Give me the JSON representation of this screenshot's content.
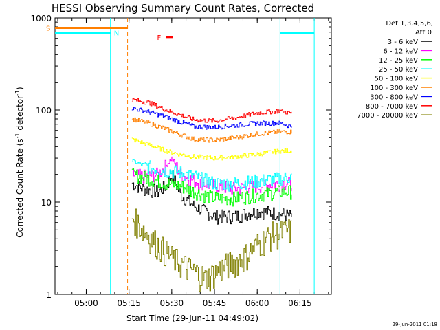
{
  "chart_data": {
    "type": "line",
    "title": "HESSI Observing Summary Count Rates, Corrected",
    "xlabel": "Start Time (29-Jun-11 04:49:02)",
    "ylabel": "Corrected Count Rate (s⁻¹ detector⁻¹)",
    "ylabel_main": "Corrected Count Rate (s",
    "ylabel_mid": " detector",
    "ylabel_end": ")",
    "ylabel_sup": "-1",
    "timestamp": "29-Jun-2011 01:18",
    "y_scale": "log",
    "ylim": [
      1,
      1000
    ],
    "xlim": [
      "04:49:02",
      "06:26:00"
    ],
    "x_ticks": [
      "05:00",
      "05:15",
      "05:30",
      "05:45",
      "06:00",
      "06:15"
    ],
    "y_ticks": [
      "1",
      "10",
      "100",
      "1000"
    ],
    "legend_placement": "right",
    "legend_header": [
      "Det 1,3,4,5,6,",
      "Att 0"
    ],
    "series": [
      {
        "name": "3 - 6 keV",
        "color": "#000000",
        "x": [
          "05:16",
          "05:20",
          "05:25",
          "05:28",
          "05:30",
          "05:33",
          "05:38",
          "05:45",
          "05:52",
          "06:00",
          "06:08",
          "06:12"
        ],
        "values": [
          16,
          14,
          13,
          15,
          20,
          12,
          9,
          7,
          7,
          8,
          7.5,
          7
        ]
      },
      {
        "name": "6 - 12 keV",
        "color": "#ff00ff",
        "x": [
          "05:16",
          "05:20",
          "05:25",
          "05:28",
          "05:30",
          "05:33",
          "05:38",
          "05:45",
          "05:52",
          "06:00",
          "06:08",
          "06:12"
        ],
        "values": [
          20,
          19,
          20,
          25,
          30,
          20,
          17,
          15,
          14,
          15,
          16,
          16
        ]
      },
      {
        "name": "12 - 25 keV",
        "color": "#00ff00",
        "x": [
          "05:16",
          "05:22",
          "05:28",
          "05:33",
          "05:38",
          "05:45",
          "05:52",
          "06:00",
          "06:08",
          "06:12"
        ],
        "values": [
          20,
          18,
          16,
          15,
          13,
          11,
          11,
          12,
          13,
          13
        ]
      },
      {
        "name": "25 - 50 keV",
        "color": "#00ffff",
        "x": [
          "05:16",
          "05:22",
          "05:28",
          "05:33",
          "05:38",
          "05:45",
          "05:52",
          "06:00",
          "06:08",
          "06:12"
        ],
        "values": [
          28,
          24,
          22,
          21,
          19,
          16,
          16,
          17,
          18,
          19
        ]
      },
      {
        "name": "50 - 100 keV",
        "color": "#ffff00",
        "x": [
          "05:16",
          "05:22",
          "05:28",
          "05:33",
          "05:38",
          "05:45",
          "05:52",
          "06:00",
          "06:08",
          "06:12"
        ],
        "values": [
          48,
          42,
          36,
          33,
          31,
          30,
          31,
          33,
          36,
          36
        ]
      },
      {
        "name": "100 - 300 keV",
        "color": "#ff7f00",
        "x": [
          "05:16",
          "05:22",
          "05:28",
          "05:33",
          "05:38",
          "05:45",
          "05:52",
          "06:00",
          "06:08",
          "06:12"
        ],
        "values": [
          80,
          72,
          62,
          54,
          48,
          47,
          50,
          55,
          58,
          58
        ]
      },
      {
        "name": "300 - 800 keV",
        "color": "#0000ff",
        "x": [
          "05:16",
          "05:22",
          "05:28",
          "05:33",
          "05:38",
          "05:45",
          "05:52",
          "06:00",
          "06:08",
          "06:12"
        ],
        "values": [
          105,
          95,
          84,
          74,
          66,
          65,
          68,
          72,
          72,
          66
        ]
      },
      {
        "name": "800 - 7000 keV",
        "color": "#ff0000",
        "x": [
          "05:16",
          "05:22",
          "05:28",
          "05:33",
          "05:38",
          "05:45",
          "05:52",
          "06:00",
          "06:08",
          "06:12"
        ],
        "values": [
          130,
          120,
          100,
          88,
          78,
          76,
          82,
          93,
          98,
          92
        ]
      },
      {
        "name": "7000 - 20000 keV",
        "color": "#808000",
        "x": [
          "05:16",
          "05:20",
          "05:25",
          "05:30",
          "05:35",
          "05:42",
          "05:48",
          "05:55",
          "06:00",
          "06:05",
          "06:12"
        ],
        "values": [
          7,
          5,
          3.5,
          2.5,
          2,
          1.5,
          2,
          2.5,
          3.5,
          4.5,
          5
        ]
      }
    ],
    "atten_state": {
      "label": "S",
      "color": "#ff7f00",
      "value": 780,
      "segments": [
        [
          "04:49:02",
          "05:14:30"
        ]
      ],
      "boundaries": [
        "05:14:30"
      ]
    },
    "saa_state": {
      "label": "N",
      "color": "#00ffff",
      "value": 680,
      "segments": [
        [
          "04:49:02",
          "05:08:30"
        ],
        [
          "06:08:00",
          "06:20:00"
        ]
      ],
      "boundaries": [
        "05:08:30",
        "06:08:00",
        "06:20:00"
      ]
    },
    "flare_flag": {
      "label": "F",
      "color": "#ff0000",
      "value": 620,
      "segments": [
        [
          "05:28:00",
          "05:30:30"
        ]
      ]
    }
  }
}
